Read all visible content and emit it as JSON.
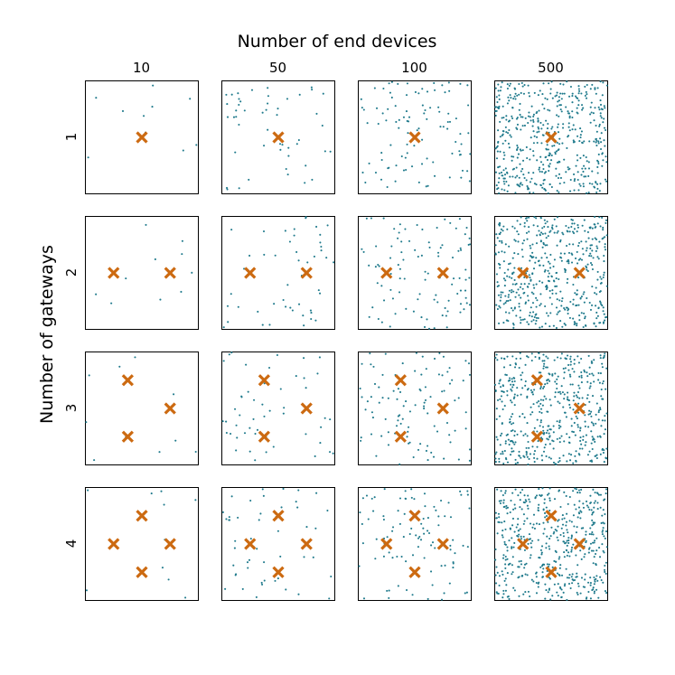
{
  "chart_data": {
    "type": "scatter",
    "title": "Number of end devices",
    "xlabel": "Number of end devices",
    "ylabel": "Number of gateways",
    "column_labels": [
      "10",
      "50",
      "100",
      "500"
    ],
    "row_labels": [
      "1",
      "2",
      "3",
      "4"
    ],
    "end_device_counts": [
      10,
      50,
      100,
      500
    ],
    "gateway_counts": [
      1,
      2,
      3,
      4
    ],
    "xlim": [
      0,
      1
    ],
    "ylim": [
      0,
      1
    ],
    "grid": false,
    "legend": "none",
    "colors": {
      "end_device": "#1f7a8c",
      "gateway": "#cc6a11"
    },
    "markers": {
      "end_device": "dot",
      "gateway": "x"
    },
    "gateway_positions": [
      [
        [
          0.5,
          0.5
        ]
      ],
      [
        [
          0.25,
          0.5
        ],
        [
          0.75,
          0.5
        ]
      ],
      [
        [
          0.375,
          0.75
        ],
        [
          0.75,
          0.5
        ],
        [
          0.375,
          0.25
        ]
      ],
      [
        [
          0.5,
          0.75
        ],
        [
          0.25,
          0.5
        ],
        [
          0.75,
          0.5
        ],
        [
          0.5,
          0.25
        ]
      ]
    ]
  }
}
